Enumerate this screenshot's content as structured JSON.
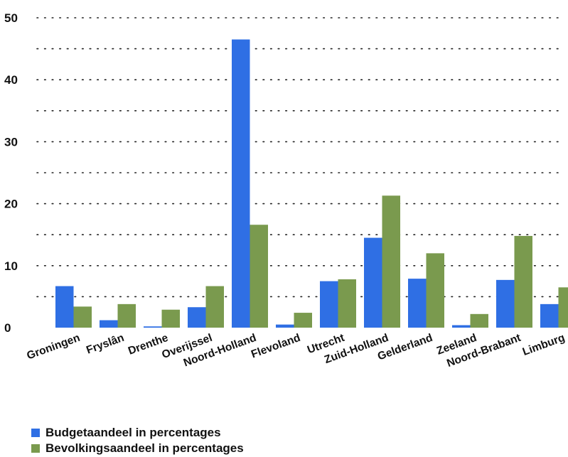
{
  "chart_data": {
    "type": "bar",
    "categories": [
      "Groningen",
      "Fryslân",
      "Drenthe",
      "Overijssel",
      "Noord-Holland",
      "Flevoland",
      "Utrecht",
      "Zuid-Holland",
      "Gelderland",
      "Zeeland",
      "Noord-Brabant",
      "Limburg"
    ],
    "series": [
      {
        "name": "Budgetaandeel in percentages",
        "color": "#2f6fe4",
        "values": [
          6.7,
          1.2,
          0.2,
          3.3,
          46.5,
          0.5,
          7.5,
          14.5,
          7.9,
          0.4,
          7.7,
          3.8
        ]
      },
      {
        "name": "Bevolkingsaandeel in percentages",
        "color": "#7a9a4e",
        "values": [
          3.4,
          3.8,
          2.9,
          6.7,
          16.6,
          2.4,
          7.8,
          21.3,
          12.0,
          2.2,
          14.8,
          6.5
        ]
      }
    ],
    "yticks": [
      0,
      10,
      20,
      30,
      40,
      50
    ],
    "ylim": [
      0,
      50
    ],
    "grid": true,
    "legend_position": "bottom-left"
  }
}
